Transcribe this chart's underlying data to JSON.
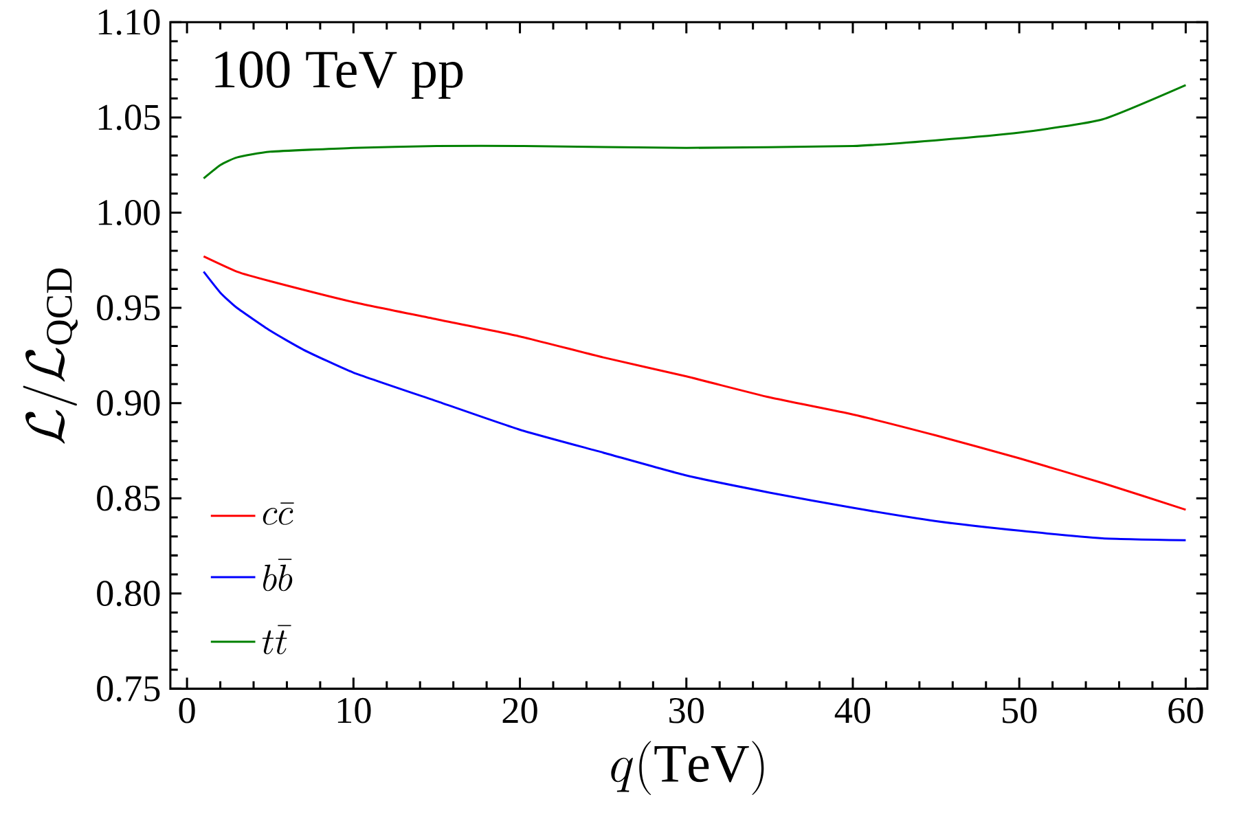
{
  "chart_data": {
    "type": "line",
    "title": "100 TeV pp",
    "xlabel": "q(\\mathrm{TeV})",
    "ylabel": "\\mathcal{L}/\\mathcal{L}_{\\mathrm{QCD}}",
    "xlim": [
      -1,
      61.3
    ],
    "xticks": [
      0,
      10,
      20,
      30,
      40,
      50,
      60
    ],
    "ylim": [
      0.75,
      1.1
    ],
    "yticks": [
      {
        "value": 0.75,
        "label": "0.75"
      },
      {
        "value": 0.8,
        "label": "0.80"
      },
      {
        "value": 0.85,
        "label": "0.85"
      },
      {
        "value": 0.9,
        "label": "0.90"
      },
      {
        "value": 0.95,
        "label": "0.95"
      },
      {
        "value": 1.0,
        "label": "1.00"
      },
      {
        "value": 1.05,
        "label": "1.05"
      },
      {
        "value": 1.1,
        "label": "1.10"
      }
    ],
    "legend": "bottom left",
    "marker": "none",
    "line_style": "solid",
    "grid": false,
    "series": [
      {
        "name": "c\\bar{c}",
        "color": "#ff0000",
        "x": [
          1,
          3,
          5,
          10,
          15,
          20,
          25,
          30,
          35,
          40,
          45,
          50,
          55,
          60
        ],
        "values": [
          0.977,
          0.969,
          0.964,
          0.953,
          0.944,
          0.935,
          0.924,
          0.914,
          0.903,
          0.894,
          0.883,
          0.871,
          0.858,
          0.844
        ]
      },
      {
        "name": "b\\bar{b}",
        "color": "#0000ff",
        "x": [
          1,
          2,
          3,
          5,
          7,
          10,
          15,
          20,
          25,
          30,
          35,
          40,
          45,
          50,
          55,
          60
        ],
        "values": [
          0.969,
          0.958,
          0.95,
          0.938,
          0.928,
          0.916,
          0.901,
          0.886,
          0.874,
          0.862,
          0.853,
          0.845,
          0.838,
          0.833,
          0.829,
          0.828
        ]
      },
      {
        "name": "t\\bar{t}",
        "color": "#008000",
        "x": [
          1,
          2,
          3,
          5,
          10,
          15,
          20,
          30,
          40,
          45,
          50,
          55,
          60
        ],
        "values": [
          1.018,
          1.025,
          1.029,
          1.032,
          1.034,
          1.035,
          1.035,
          1.034,
          1.035,
          1.038,
          1.042,
          1.049,
          1.067
        ]
      }
    ]
  }
}
